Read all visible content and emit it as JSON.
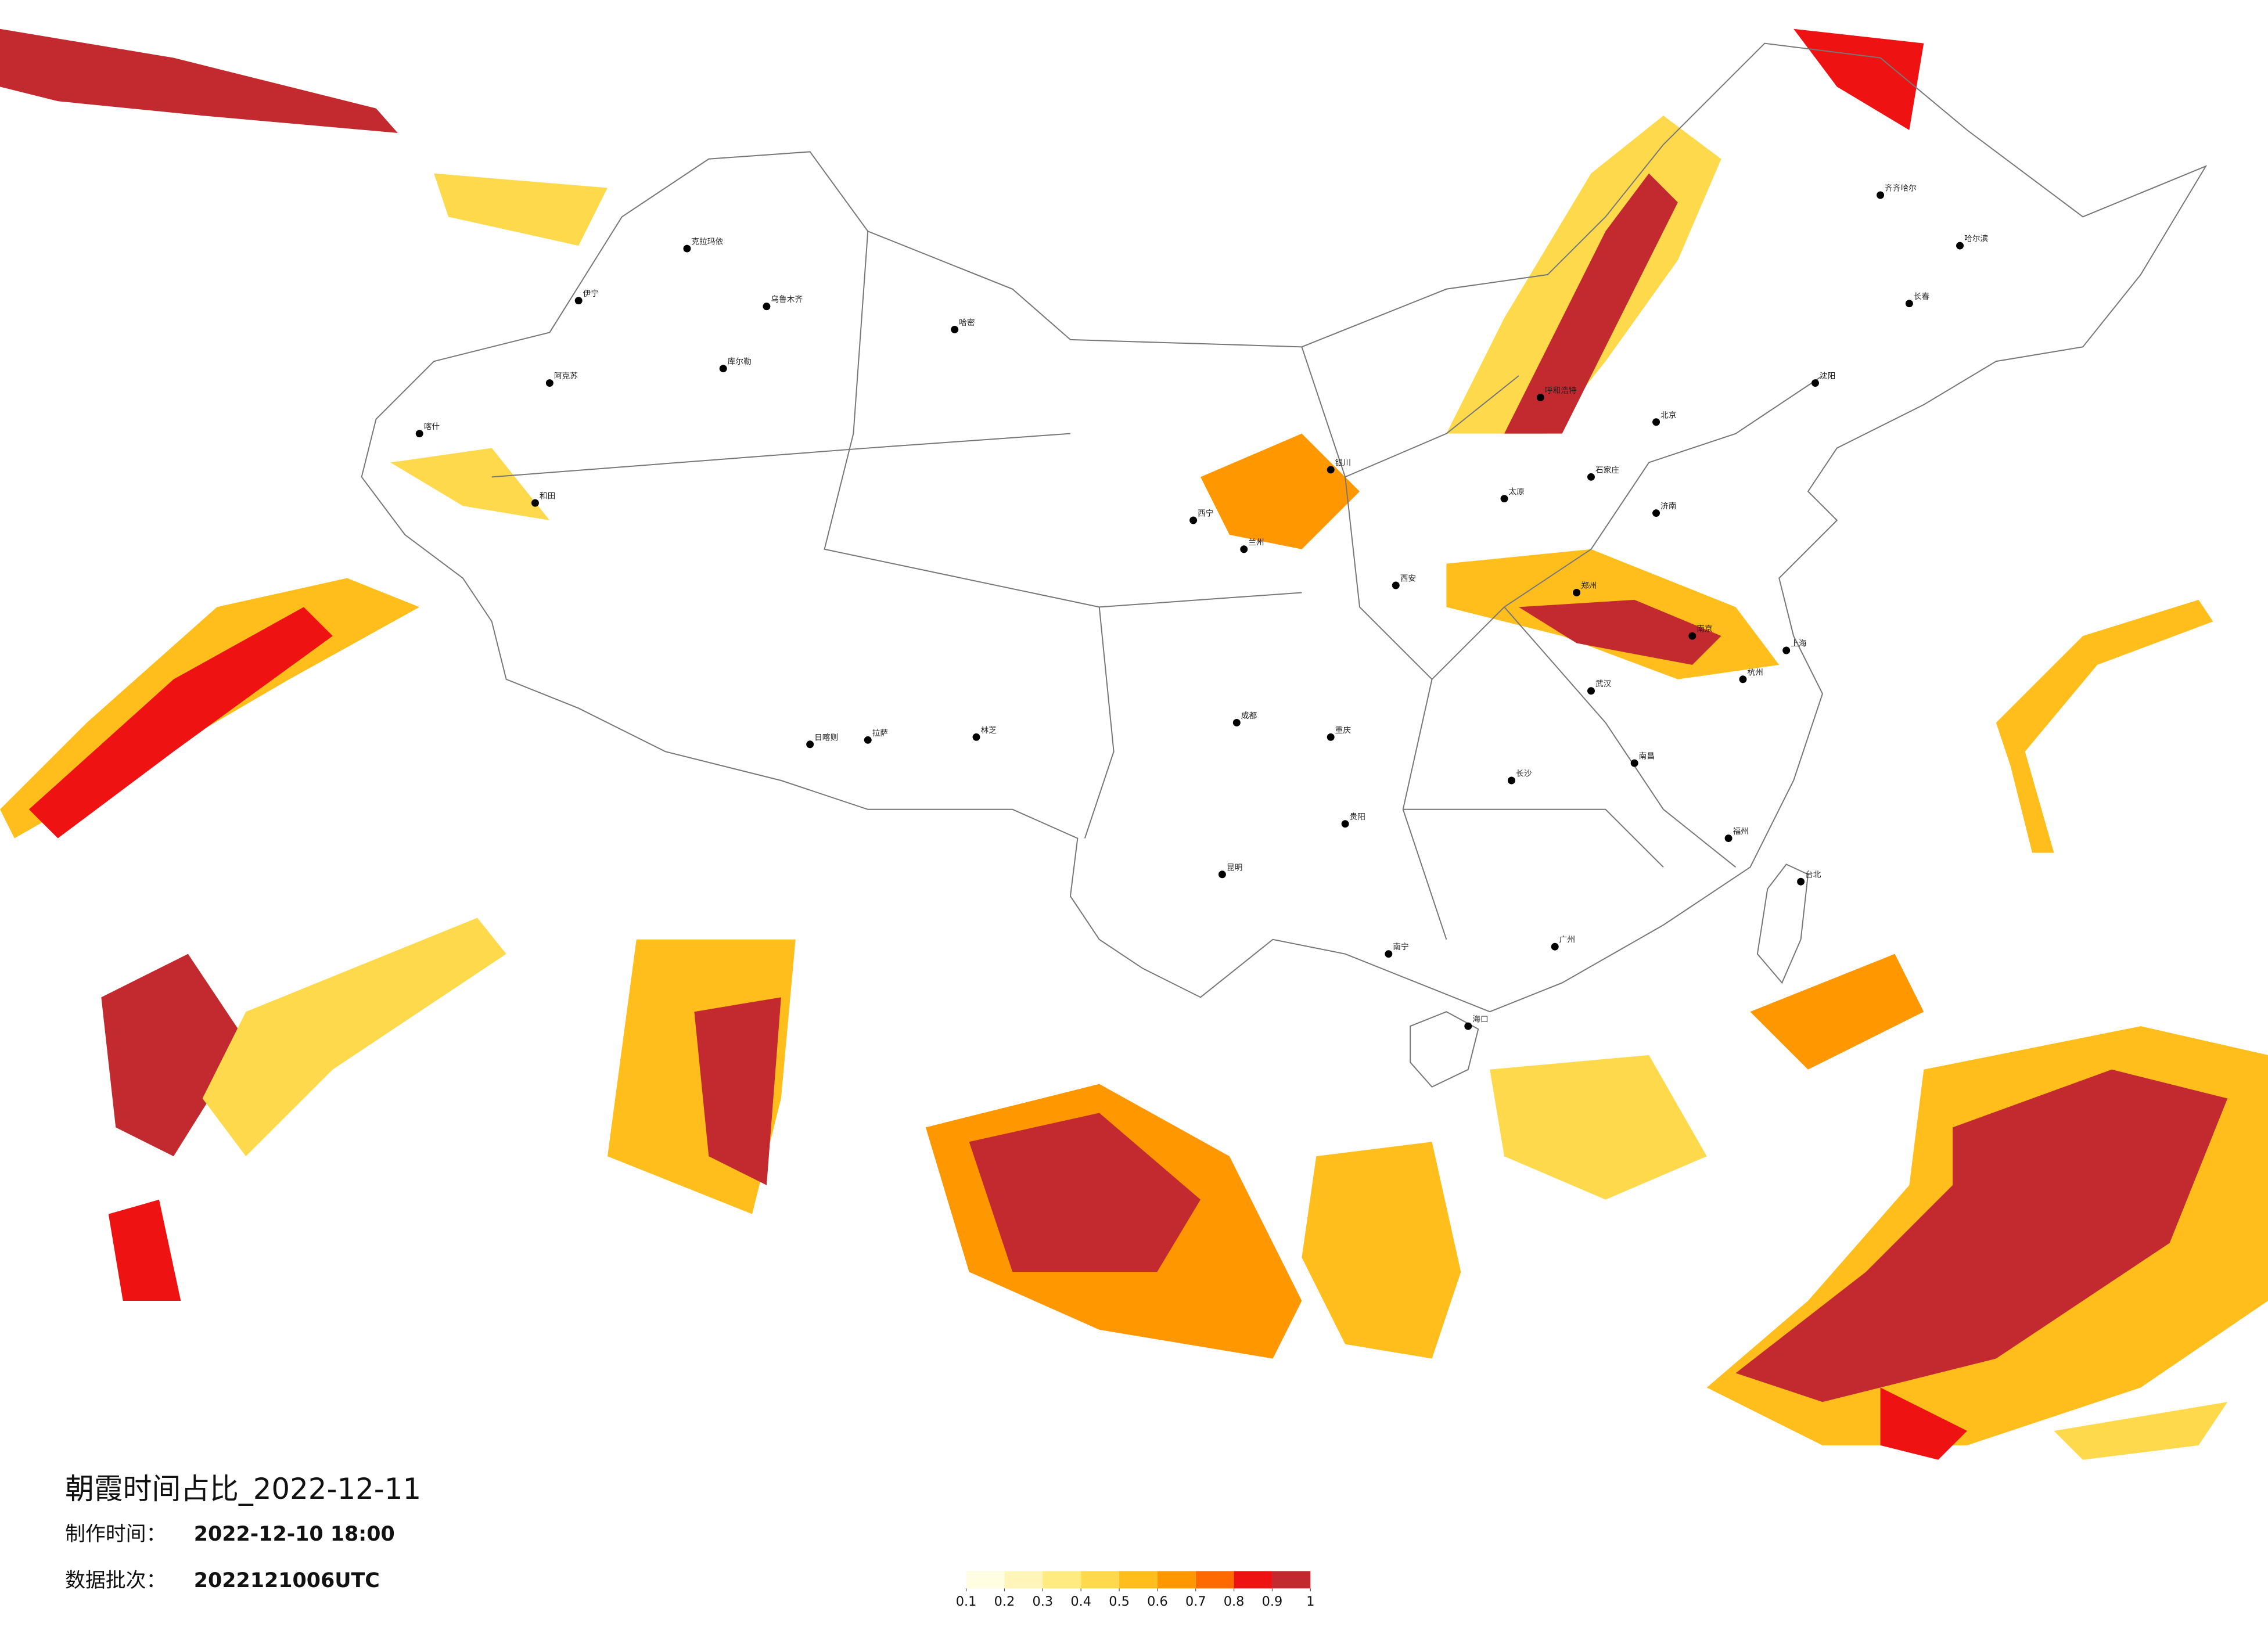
{
  "title": "朝霞时间占比_2022-12-11",
  "made_label": "制作时间：",
  "made_time": "2022-12-10 18:00",
  "batch_label": "数据批次：",
  "batch": "2022121006UTC",
  "legend": {
    "ticks": [
      0.1,
      0.2,
      0.3,
      0.4,
      0.5,
      0.6,
      0.7,
      0.8,
      0.9,
      1
    ],
    "colors": [
      "#fffde2",
      "#fff5b8",
      "#ffeb80",
      "#ffd94c",
      "#ffbe1c",
      "#ff9800",
      "#ff6a00",
      "#ee1212",
      "#c32a30"
    ]
  },
  "cities": [
    "乌鲁木齐",
    "哈密",
    "克拉玛依",
    "伊宁",
    "阿克苏",
    "喀什",
    "库尔勒",
    "和田",
    "拉萨",
    "日喀则",
    "林芝",
    "西宁",
    "兰州",
    "银川",
    "呼和浩特",
    "北京",
    "石家庄",
    "太原",
    "郑州",
    "西安",
    "成都",
    "重庆",
    "贵阳",
    "昆明",
    "南宁",
    "广州",
    "长沙",
    "武汉",
    "南昌",
    "杭州",
    "上海",
    "南京",
    "济南",
    "沈阳",
    "长春",
    "哈尔滨",
    "海口",
    "台北",
    "齐齐哈尔",
    "福州"
  ]
}
